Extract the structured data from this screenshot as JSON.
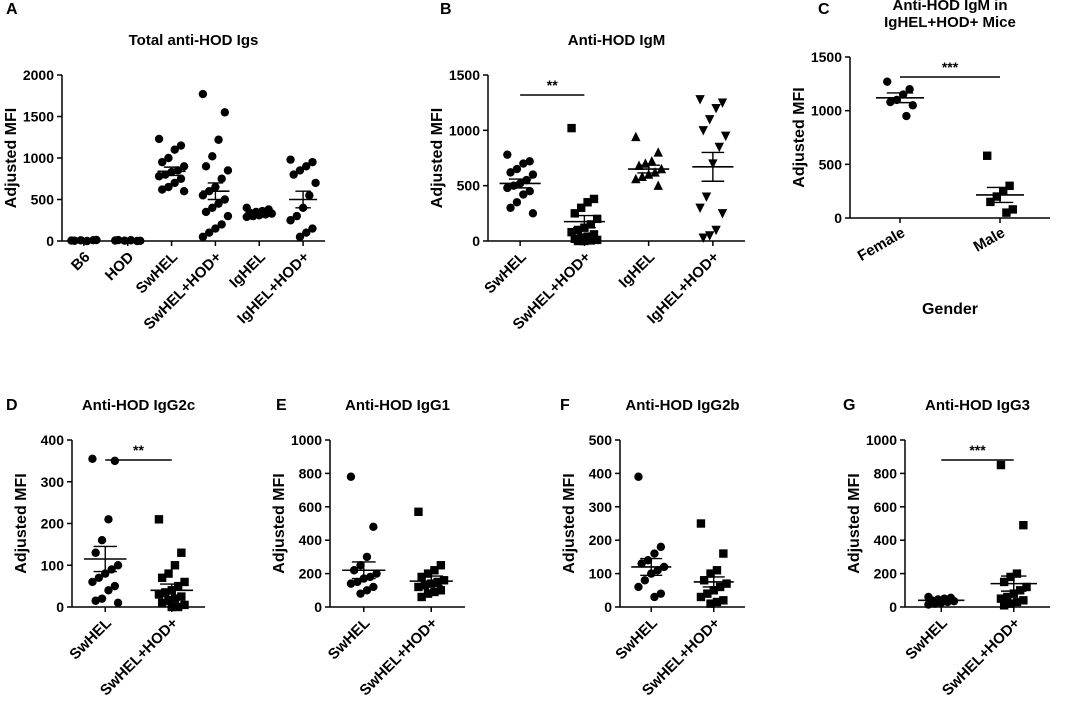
{
  "chart_data": [
    {
      "type": "dotplot",
      "panel": "A",
      "title": [
        "Total anti-HOD Igs"
      ],
      "ylabel": "Adjusted MFI",
      "color": "#000000",
      "categories": [
        "B6",
        "HOD",
        "SwHEL",
        "SwHEL+HOD+",
        "IgHEL",
        "IgHEL+HOD+"
      ],
      "markers": [
        "circle",
        "circle",
        "circle",
        "circle",
        "circle",
        "circle"
      ],
      "values": [
        [
          5,
          10,
          0,
          8,
          3,
          12
        ],
        [
          6,
          0,
          9,
          4,
          11,
          2
        ],
        [
          1230,
          1150,
          1100,
          1000,
          950,
          900,
          850,
          830,
          800,
          780,
          750,
          700,
          650,
          620,
          600
        ],
        [
          1770,
          1550,
          1220,
          1020,
          900,
          850,
          750,
          650,
          600,
          550,
          500,
          450,
          400,
          350,
          300,
          200,
          150,
          100,
          50
        ],
        [
          400,
          380,
          360,
          350,
          340,
          330,
          320,
          310,
          300,
          290
        ],
        [
          980,
          950,
          900,
          850,
          800,
          700,
          550,
          400,
          300,
          250,
          150,
          100,
          50
        ]
      ],
      "means": [
        7,
        5,
        840,
        600,
        335,
        500
      ],
      "sems": [
        2,
        2,
        50,
        100,
        15,
        100
      ],
      "ylim": [
        0,
        2000
      ],
      "yticks": [
        0,
        500,
        1000,
        1500,
        2000
      ]
    },
    {
      "type": "dotplot",
      "panel": "B",
      "title": [
        "Anti-HOD IgM"
      ],
      "ylabel": "Adjusted MFI",
      "color": "#000000",
      "categories": [
        "SwHEL",
        "SwHEL+HOD+",
        "IgHEL",
        "IgHEL+HOD+"
      ],
      "markers": [
        "circle",
        "square",
        "triangle-up",
        "triangle-down"
      ],
      "values": [
        [
          780,
          720,
          700,
          650,
          620,
          600,
          550,
          520,
          500,
          480,
          450,
          420,
          350,
          300,
          250
        ],
        [
          1020,
          380,
          350,
          300,
          250,
          200,
          150,
          120,
          100,
          80,
          60,
          40,
          30,
          20,
          10,
          5,
          0,
          0
        ],
        [
          940,
          800,
          720,
          700,
          680,
          650,
          620,
          600,
          580,
          560,
          500
        ],
        [
          1280,
          1250,
          1200,
          1100,
          1000,
          950,
          850,
          700,
          400,
          300,
          250,
          100,
          50,
          30
        ]
      ],
      "means": [
        520,
        175,
        650,
        670
      ],
      "sems": [
        40,
        55,
        35,
        130
      ],
      "ylim": [
        0,
        1500
      ],
      "yticks": [
        0,
        500,
        1000,
        1500
      ],
      "annotations": [
        {
          "label": "**",
          "between": [
            "SwHEL",
            "SwHEL+HOD+"
          ]
        }
      ]
    },
    {
      "type": "dotplot",
      "panel": "C",
      "title": [
        "Anti-HOD IgM in",
        "IgHEL+HOD+ Mice"
      ],
      "ylabel": "Adjusted MFI",
      "xlabel": "Gender",
      "color": "#000000",
      "categories": [
        "Female",
        "Male"
      ],
      "markers": [
        "circle",
        "square"
      ],
      "values": [
        [
          1270,
          1200,
          1150,
          1100,
          1080,
          1050,
          950
        ],
        [
          580,
          300,
          250,
          200,
          150,
          80,
          50
        ]
      ],
      "means": [
        1120,
        215
      ],
      "sems": [
        45,
        70
      ],
      "ylim": [
        0,
        1500
      ],
      "yticks": [
        0,
        500,
        1000,
        1500
      ],
      "annotations": [
        {
          "label": "***",
          "between": [
            "Female",
            "Male"
          ]
        }
      ]
    },
    {
      "type": "dotplot",
      "panel": "D",
      "title": [
        "Anti-HOD IgG2c"
      ],
      "ylabel": "Adjusted MFI",
      "color": "#000000",
      "categories": [
        "SwHEL",
        "SwHEL+HOD+"
      ],
      "markers": [
        "circle",
        "square"
      ],
      "values": [
        [
          355,
          350,
          210,
          160,
          130,
          100,
          90,
          80,
          70,
          60,
          50,
          40,
          20,
          15,
          10
        ],
        [
          210,
          130,
          100,
          80,
          70,
          60,
          50,
          40,
          35,
          30,
          25,
          20,
          15,
          10,
          5,
          0,
          0
        ]
      ],
      "means": [
        115,
        40
      ],
      "sems": [
        30,
        15
      ],
      "ylim": [
        0,
        400
      ],
      "yticks": [
        0,
        100,
        200,
        300,
        400
      ],
      "annotations": [
        {
          "label": "**",
          "between": [
            "SwHEL",
            "SwHEL+HOD+"
          ]
        }
      ]
    },
    {
      "type": "dotplot",
      "panel": "E",
      "title": [
        "Anti-HOD IgG1"
      ],
      "ylabel": "Adjusted MFI",
      "color": "#000000",
      "categories": [
        "SwHEL",
        "SwHEL+HOD+"
      ],
      "markers": [
        "circle",
        "square"
      ],
      "values": [
        [
          780,
          480,
          300,
          250,
          220,
          200,
          180,
          170,
          150,
          140,
          120,
          100,
          80
        ],
        [
          570,
          250,
          220,
          200,
          180,
          160,
          150,
          140,
          130,
          120,
          100,
          90,
          80,
          60
        ]
      ],
      "means": [
        220,
        155
      ],
      "sems": [
        50,
        30
      ],
      "ylim": [
        0,
        1000
      ],
      "yticks": [
        0,
        200,
        400,
        600,
        800,
        1000
      ]
    },
    {
      "type": "dotplot",
      "panel": "F",
      "title": [
        "Anti-HOD IgG2b"
      ],
      "ylabel": "Adjusted MFI",
      "color": "#000000",
      "categories": [
        "SwHEL",
        "SwHEL+HOD+"
      ],
      "markers": [
        "circle",
        "square"
      ],
      "values": [
        [
          390,
          180,
          160,
          140,
          130,
          120,
          110,
          100,
          80,
          60,
          40,
          30
        ],
        [
          250,
          160,
          110,
          100,
          80,
          70,
          60,
          50,
          40,
          30,
          20,
          15,
          10
        ]
      ],
      "means": [
        120,
        75
      ],
      "sems": [
        25,
        15
      ],
      "ylim": [
        0,
        500
      ],
      "yticks": [
        0,
        100,
        200,
        300,
        400,
        500
      ]
    },
    {
      "type": "dotplot",
      "panel": "G",
      "title": [
        "Anti-HOD IgG3"
      ],
      "ylabel": "Adjusted MFI",
      "color": "#000000",
      "categories": [
        "SwHEL",
        "SwHEL+HOD+"
      ],
      "markers": [
        "circle",
        "square"
      ],
      "values": [
        [
          60,
          55,
          50,
          45,
          40,
          35,
          30,
          25,
          20,
          15
        ],
        [
          850,
          490,
          200,
          180,
          150,
          120,
          100,
          80,
          60,
          50,
          40,
          30,
          20,
          10
        ]
      ],
      "means": [
        40,
        140
      ],
      "sems": [
        5,
        45
      ],
      "ylim": [
        0,
        1000
      ],
      "yticks": [
        0,
        200,
        400,
        600,
        800,
        1000
      ],
      "annotations": [
        {
          "label": "***",
          "between": [
            "SwHEL",
            "SwHEL+HOD+"
          ]
        }
      ]
    }
  ]
}
